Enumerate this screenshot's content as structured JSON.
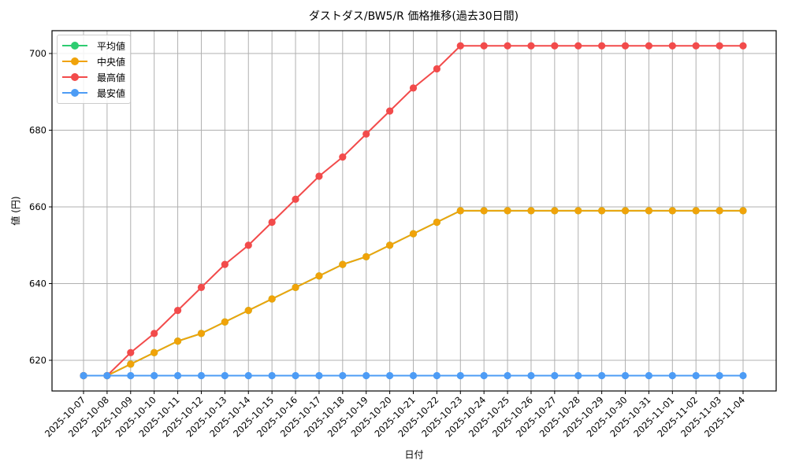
{
  "chart_data": {
    "type": "line",
    "title": "ダストダス/BW5/R 価格推移(過去30日間)",
    "xlabel": "日付",
    "ylabel": "値 (円)",
    "ylim": [
      612,
      706
    ],
    "yticks": [
      620,
      640,
      660,
      680,
      700
    ],
    "grid": true,
    "legend_position": "upper left",
    "x": [
      "2025-10-07",
      "2025-10-08",
      "2025-10-09",
      "2025-10-10",
      "2025-10-11",
      "2025-10-12",
      "2025-10-13",
      "2025-10-14",
      "2025-10-15",
      "2025-10-16",
      "2025-10-17",
      "2025-10-18",
      "2025-10-19",
      "2025-10-20",
      "2025-10-21",
      "2025-10-22",
      "2025-10-23",
      "2025-10-24",
      "2025-10-25",
      "2025-10-26",
      "2025-10-27",
      "2025-10-28",
      "2025-10-29",
      "2025-10-30",
      "2025-10-31",
      "2025-11-01",
      "2025-11-02",
      "2025-11-03",
      "2025-11-04"
    ],
    "series": [
      {
        "name": "平均値",
        "color": "#2ecc71",
        "values": [
          616,
          616,
          619,
          622,
          625,
          627,
          630,
          633,
          636,
          639,
          642,
          645,
          647,
          650,
          653,
          656,
          659,
          659,
          659,
          659,
          659,
          659,
          659,
          659,
          659,
          659,
          659,
          659,
          659
        ]
      },
      {
        "name": "中央値",
        "color": "#f0a30a",
        "values": [
          616,
          616,
          619,
          622,
          625,
          627,
          630,
          633,
          636,
          639,
          642,
          645,
          647,
          650,
          653,
          656,
          659,
          659,
          659,
          659,
          659,
          659,
          659,
          659,
          659,
          659,
          659,
          659,
          659
        ]
      },
      {
        "name": "最高値",
        "color": "#f24b4b",
        "values": [
          616,
          616,
          622,
          627,
          633,
          639,
          645,
          650,
          656,
          662,
          668,
          673,
          679,
          685,
          691,
          696,
          702,
          702,
          702,
          702,
          702,
          702,
          702,
          702,
          702,
          702,
          702,
          702,
          702
        ]
      },
      {
        "name": "最安値",
        "color": "#4d9cf5",
        "values": [
          616,
          616,
          616,
          616,
          616,
          616,
          616,
          616,
          616,
          616,
          616,
          616,
          616,
          616,
          616,
          616,
          616,
          616,
          616,
          616,
          616,
          616,
          616,
          616,
          616,
          616,
          616,
          616,
          616
        ]
      }
    ]
  }
}
